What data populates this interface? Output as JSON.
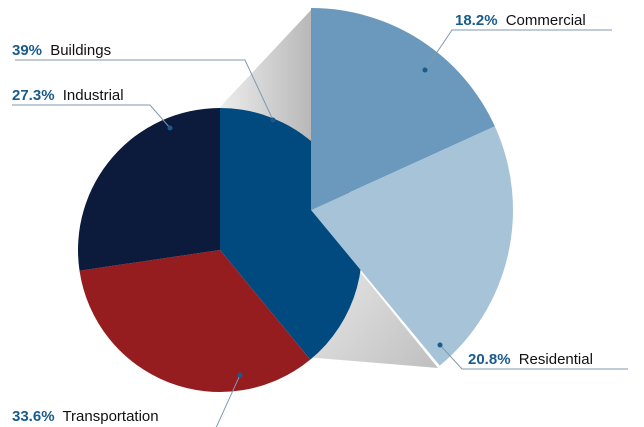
{
  "chart_data": {
    "type": "pie",
    "title": "",
    "main": {
      "slices": [
        {
          "name": "Buildings",
          "pct_label": "39%",
          "value": 39,
          "color": "#004a80"
        },
        {
          "name": "Transportation",
          "pct_label": "33.6%",
          "value": 33.6,
          "color": "#951d20"
        },
        {
          "name": "Industrial",
          "pct_label": "27.3%",
          "value": 27.3,
          "color": "#0c1a3c"
        }
      ]
    },
    "breakdown": {
      "of": "Buildings",
      "slices": [
        {
          "name": "Commercial",
          "pct_label": "18.2%",
          "value": 18.2,
          "color": "#6a99bd"
        },
        {
          "name": "Residential",
          "pct_label": "20.8%",
          "value": 20.8,
          "color": "#a6c3d8"
        }
      ]
    },
    "colors": {
      "label_pct": "#1a5b8c",
      "label_text": "#111111",
      "leader": "#7f9ab0"
    }
  }
}
